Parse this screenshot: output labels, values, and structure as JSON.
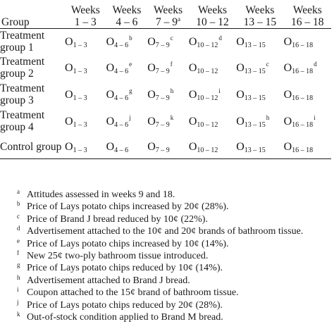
{
  "table": {
    "group_header": "Group",
    "week_headers": [
      {
        "label": "Weeks",
        "range": "1 – 3",
        "note": ""
      },
      {
        "label": "Weeks",
        "range": "4 – 6",
        "note": ""
      },
      {
        "label": "Weeks",
        "range": "7 – 9",
        "note": "a"
      },
      {
        "label": "Weeks",
        "range": "10 – 12",
        "note": ""
      },
      {
        "label": "Weeks",
        "range": "13 – 15",
        "note": ""
      },
      {
        "label": "Weeks",
        "range": "16 – 18",
        "note": ""
      }
    ],
    "rows": [
      {
        "group_line1": "Treatment",
        "group_line2": "group 1",
        "cells": [
          {
            "o": "O",
            "sub": "1 – 3",
            "note": ""
          },
          {
            "o": "O",
            "sub": "4 – 6",
            "note": "b"
          },
          {
            "o": "O",
            "sub": "7 – 9",
            "note": "c"
          },
          {
            "o": "O",
            "sub": "10 – 12",
            "note": "d"
          },
          {
            "o": "O",
            "sub": "13 – 15",
            "note": ""
          },
          {
            "o": "O",
            "sub": "16 – 18",
            "note": ""
          }
        ]
      },
      {
        "group_line1": "Treatment",
        "group_line2": "group 2",
        "cells": [
          {
            "o": "O",
            "sub": "1 – 3",
            "note": ""
          },
          {
            "o": "O",
            "sub": "4 – 6",
            "note": "e"
          },
          {
            "o": "O",
            "sub": "7 – 9",
            "note": "f"
          },
          {
            "o": "O",
            "sub": "10 – 12",
            "note": ""
          },
          {
            "o": "O",
            "sub": "13 – 15",
            "note": "c"
          },
          {
            "o": "O",
            "sub": "16 – 18",
            "note": "d"
          }
        ]
      },
      {
        "group_line1": "Treatment",
        "group_line2": "group 3",
        "cells": [
          {
            "o": "O",
            "sub": "1 – 3",
            "note": ""
          },
          {
            "o": "O",
            "sub": "4 – 6",
            "note": "g"
          },
          {
            "o": "O",
            "sub": "7 – 9",
            "note": "h"
          },
          {
            "o": "O",
            "sub": "10 – 12",
            "note": "i"
          },
          {
            "o": "O",
            "sub": "13 – 15",
            "note": ""
          },
          {
            "o": "O",
            "sub": "16 – 18",
            "note": ""
          }
        ]
      },
      {
        "group_line1": "Treatment",
        "group_line2": "group 4",
        "cells": [
          {
            "o": "O",
            "sub": "1 – 3",
            "note": ""
          },
          {
            "o": "O",
            "sub": "4 – 6",
            "note": "j"
          },
          {
            "o": "O",
            "sub": "7 – 9",
            "note": "k"
          },
          {
            "o": "O",
            "sub": "10 – 12",
            "note": ""
          },
          {
            "o": "O",
            "sub": "13 – 15",
            "note": "h"
          },
          {
            "o": "O",
            "sub": "16 – 18",
            "note": "i"
          }
        ]
      },
      {
        "group_line1": "Control group",
        "group_line2": "",
        "cells": [
          {
            "o": "O",
            "sub": "1 – 3",
            "note": ""
          },
          {
            "o": "O",
            "sub": "4 – 6",
            "note": ""
          },
          {
            "o": "O",
            "sub": "7 – 9",
            "note": ""
          },
          {
            "o": "O",
            "sub": "10 – 12",
            "note": ""
          },
          {
            "o": "O",
            "sub": "13 – 15",
            "note": ""
          },
          {
            "o": "O",
            "sub": "16 – 18",
            "note": ""
          }
        ]
      }
    ]
  },
  "footnotes": [
    {
      "mark": "a",
      "text": "Attitudes assessed in weeks 9 and 18."
    },
    {
      "mark": "b",
      "text": "Price of Lays potato chips increased by 20¢ (28%)."
    },
    {
      "mark": "c",
      "text": "Price of Brand J bread reduced by 10¢ (22%)."
    },
    {
      "mark": "d",
      "text": "Advertisement attached to the 10¢ and 20¢ brands of bathroom tissue."
    },
    {
      "mark": "e",
      "text": "Price of Lays potato chips increased by 10¢ (14%)."
    },
    {
      "mark": "f",
      "text": "New 25¢ two-ply bathroom tissue introduced."
    },
    {
      "mark": "g",
      "text": "Price of Lays potato chips reduced by 10¢ (14%)."
    },
    {
      "mark": "h",
      "text": "Advertisement attached to Brand J bread."
    },
    {
      "mark": "i",
      "text": "Coupon attached to the 15¢ brand of bathroom tissue."
    },
    {
      "mark": "j",
      "text": "Price of Lays potato chips reduced by 20¢ (28%)."
    },
    {
      "mark": "k",
      "text": "Out-of-stock condition applied to Brand M bread."
    }
  ]
}
